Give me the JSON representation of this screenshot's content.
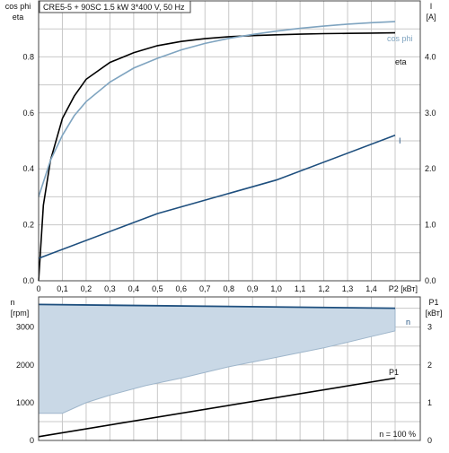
{
  "title": "CRE5-5 + 90SC   1.5 kW   3*400 V, 50 Hz",
  "top_left_label_1": "cos phi",
  "top_left_label_2": "eta",
  "top_right_label_1": "I",
  "top_right_label_2": "[A]",
  "bottom_left_label_1": "n",
  "bottom_left_label_2": "[rpm]",
  "bottom_right_label_1": "P1",
  "bottom_right_label_2": "[кВт]",
  "x_unit_label": "P2 [кВт]",
  "footer_note": "n = 100 %",
  "colors": {
    "eta": "#000000",
    "cosphi": "#7fa4c0",
    "current": "#1e4f7e",
    "speed_band": "#c9d8e6",
    "speed_line": "#1e4f7e",
    "p1": "#000000"
  },
  "chart_data": [
    {
      "type": "line",
      "title": "CRE5-5 + 90SC   1.5 kW   3*400 V, 50 Hz",
      "xlabel": "P2 [кВт]",
      "xlim": [
        0,
        1.55
      ],
      "x_ticks": [
        "0",
        "0,1",
        "0,2",
        "0,3",
        "0,4",
        "0,5",
        "0,6",
        "0,7",
        "0,8",
        "0,9",
        "1,0",
        "1,1",
        "1,2",
        "1,3",
        "1,4"
      ],
      "ylim_left": [
        0,
        1.0
      ],
      "y_left_ticks": [
        "0.0",
        "0.2",
        "0.4",
        "0.6",
        "0.8"
      ],
      "ylim_right": [
        0,
        5.0
      ],
      "y_right_ticks": [
        "0.0",
        "1.0",
        "2.0",
        "3.0",
        "4.0"
      ],
      "grid": true,
      "series": [
        {
          "name": "eta",
          "axis": "left",
          "x": [
            0,
            0.02,
            0.05,
            0.1,
            0.15,
            0.2,
            0.3,
            0.4,
            0.5,
            0.6,
            0.7,
            0.8,
            0.9,
            1.0,
            1.1,
            1.2,
            1.3,
            1.4,
            1.5
          ],
          "y": [
            0,
            0.27,
            0.43,
            0.58,
            0.66,
            0.72,
            0.78,
            0.815,
            0.84,
            0.855,
            0.865,
            0.872,
            0.876,
            0.879,
            0.881,
            0.883,
            0.884,
            0.885,
            0.886
          ]
        },
        {
          "name": "cos phi",
          "axis": "left",
          "x": [
            0,
            0.05,
            0.1,
            0.15,
            0.2,
            0.3,
            0.4,
            0.5,
            0.6,
            0.7,
            0.8,
            0.9,
            1.0,
            1.1,
            1.2,
            1.3,
            1.4,
            1.5
          ],
          "y": [
            0.3,
            0.43,
            0.52,
            0.59,
            0.64,
            0.71,
            0.76,
            0.795,
            0.825,
            0.848,
            0.866,
            0.88,
            0.892,
            0.902,
            0.91,
            0.917,
            0.922,
            0.926
          ]
        },
        {
          "name": "I",
          "axis": "right",
          "x": [
            0,
            0.5,
            1.0,
            1.5
          ],
          "y": [
            0.4,
            1.2,
            1.8,
            2.6
          ]
        }
      ]
    },
    {
      "type": "area",
      "x_ticks": [],
      "xlim": [
        0,
        1.55
      ],
      "ylim_left": [
        0,
        3800
      ],
      "y_left_ticks": [
        "0",
        "1000",
        "2000",
        "3000"
      ],
      "ylim_right": [
        0,
        3.8
      ],
      "y_right_ticks": [
        "0",
        "1",
        "2",
        "3"
      ],
      "grid": true,
      "series": [
        {
          "name": "n",
          "axis": "left",
          "role": "max",
          "x": [
            0,
            1.5
          ],
          "y": [
            3600,
            3500
          ]
        },
        {
          "name": "n",
          "axis": "left",
          "role": "min",
          "x": [
            0,
            0.1,
            0.2,
            0.3,
            0.45,
            0.6,
            0.8,
            1.0,
            1.2,
            1.4,
            1.5
          ],
          "y": [
            720,
            720,
            1000,
            1200,
            1450,
            1650,
            1950,
            2200,
            2450,
            2750,
            2900
          ]
        },
        {
          "name": "P1",
          "axis": "right",
          "x": [
            0,
            1.5
          ],
          "y": [
            0.1,
            1.65
          ]
        }
      ]
    }
  ]
}
